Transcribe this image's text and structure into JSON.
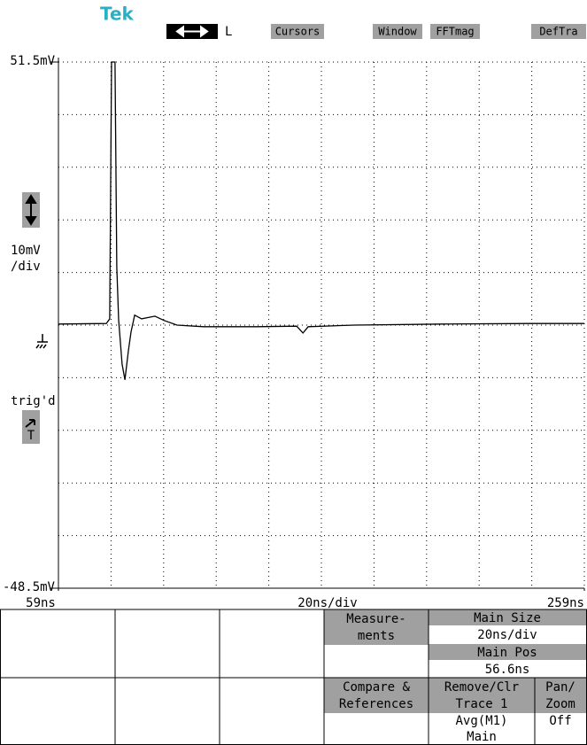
{
  "header": {
    "brand": "Tek",
    "mode": "L",
    "buttons": [
      "Cursors",
      "Window",
      "FFTmag",
      "DefTra"
    ]
  },
  "side": {
    "trigger": "trig'd",
    "trigger_source": "T"
  },
  "chart_data": {
    "type": "line",
    "y_label": [
      "10mV",
      "/div"
    ],
    "x_label": "20ns/div",
    "xlim": [
      59,
      259
    ],
    "ylim": [
      -48.5,
      51.5
    ],
    "xticks": [
      {
        "value": 59,
        "label": "59ns"
      },
      {
        "value": 259,
        "label": "259ns"
      }
    ],
    "yticks": [
      {
        "value": 51.5,
        "label": "51.5mV"
      },
      {
        "value": -48.5,
        "label": "-48.5mV"
      }
    ],
    "x": [
      59,
      77.2,
      78.5,
      79.2,
      80.5,
      81.2,
      81.9,
      83.2,
      84.3,
      85.6,
      86.6,
      88,
      90.6,
      95.7,
      99.1,
      104.1,
      114.2,
      134.4,
      149.6,
      152,
      154,
      171.5,
      205.1,
      238.8,
      259
    ],
    "series": [
      {
        "color": "#000000",
        "values": [
          1.7,
          1.8,
          2.7,
          51.5,
          51.5,
          12.6,
          2.5,
          -5.9,
          -8.9,
          -3.4,
          0.2,
          3.4,
          2.7,
          3.2,
          2.4,
          1.5,
          1.2,
          1.2,
          1.3,
          0,
          1.2,
          1.5,
          1.7,
          1.8,
          1.8
        ]
      }
    ]
  },
  "menu": {
    "measurements": [
      "Measure-",
      "ments"
    ],
    "main_size": {
      "label": "Main Size",
      "value": "20ns/div"
    },
    "main_pos": {
      "label": "Main Pos",
      "value": "56.6ns"
    },
    "compare": [
      "Compare &",
      "References"
    ],
    "remove": {
      "label": [
        "Remove/Clr",
        "Trace 1"
      ],
      "value": [
        "Avg(M1)",
        "Main"
      ]
    },
    "pan_zoom": {
      "label": [
        "Pan/",
        "Zoom"
      ],
      "value": "Off"
    }
  }
}
